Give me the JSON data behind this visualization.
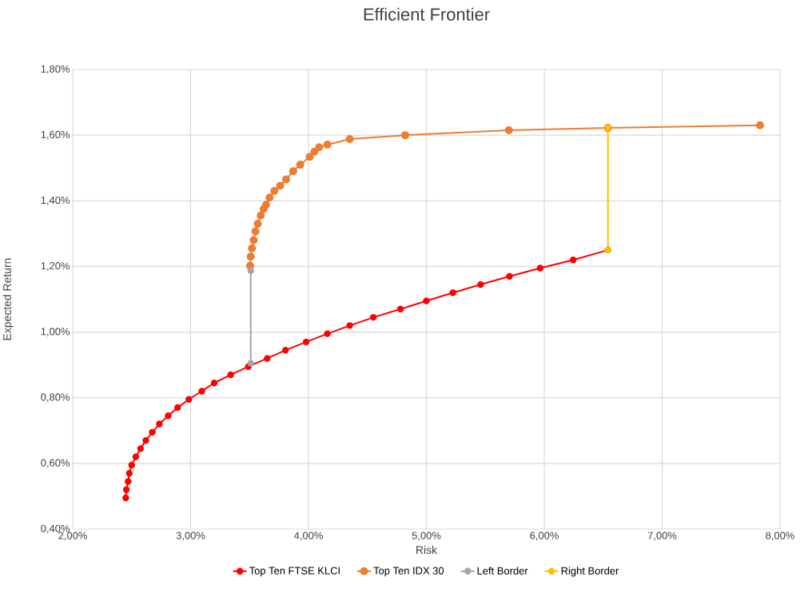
{
  "chart_data": {
    "type": "line",
    "title": "Efficient Frontier",
    "xlabel": "Risk",
    "ylabel": "Expected Return",
    "xlim": [
      2,
      8
    ],
    "ylim": [
      0.4,
      1.8
    ],
    "xticks": [
      {
        "value": 2,
        "label": "2,00%"
      },
      {
        "value": 3,
        "label": "3,00%"
      },
      {
        "value": 4,
        "label": "4,00%"
      },
      {
        "value": 5,
        "label": "5,00%"
      },
      {
        "value": 6,
        "label": "6,00%"
      },
      {
        "value": 7,
        "label": "7,00%"
      },
      {
        "value": 8,
        "label": "8,00%"
      }
    ],
    "yticks": [
      {
        "value": 0.4,
        "label": "0,40%"
      },
      {
        "value": 0.6,
        "label": "0,60%"
      },
      {
        "value": 0.8,
        "label": "0,80%"
      },
      {
        "value": 1.0,
        "label": "1,00%"
      },
      {
        "value": 1.2,
        "label": "1,20%"
      },
      {
        "value": 1.4,
        "label": "1,40%"
      },
      {
        "value": 1.6,
        "label": "1,60%"
      },
      {
        "value": 1.8,
        "label": "1,80%"
      }
    ],
    "grid": true,
    "legend": "bottom",
    "marker": "circle",
    "line_style": "solid",
    "series": [
      {
        "name": "Top Ten FTSE KLCI",
        "color": "#ff0000",
        "x": [
          2.45,
          2.455,
          2.47,
          2.48,
          2.5,
          2.535,
          2.575,
          2.62,
          2.675,
          2.735,
          2.81,
          2.89,
          2.985,
          3.095,
          3.2,
          3.34,
          3.49,
          3.65,
          3.805,
          3.98,
          4.16,
          4.35,
          4.55,
          4.78,
          5.0,
          5.225,
          5.46,
          5.705,
          5.965,
          6.245,
          6.54
        ],
        "values": [
          0.495,
          0.52,
          0.545,
          0.57,
          0.595,
          0.62,
          0.645,
          0.67,
          0.695,
          0.72,
          0.745,
          0.77,
          0.795,
          0.82,
          0.845,
          0.87,
          0.895,
          0.92,
          0.945,
          0.97,
          0.995,
          1.02,
          1.045,
          1.07,
          1.095,
          1.12,
          1.145,
          1.17,
          1.195,
          1.22,
          1.25
        ]
      },
      {
        "name": "Top Ten IDX 30",
        "color": "#ed7d31",
        "x": [
          3.505,
          3.51,
          3.52,
          3.535,
          3.55,
          3.57,
          3.595,
          3.62,
          3.64,
          3.67,
          3.71,
          3.76,
          3.81,
          3.87,
          3.93,
          4.01,
          4.05,
          4.09,
          4.16,
          4.35,
          4.82,
          5.7,
          6.54,
          7.83
        ],
        "values": [
          1.202,
          1.23,
          1.255,
          1.28,
          1.307,
          1.33,
          1.355,
          1.375,
          1.388,
          1.41,
          1.43,
          1.446,
          1.465,
          1.49,
          1.51,
          1.534,
          1.55,
          1.563,
          1.571,
          1.588,
          1.6,
          1.615,
          1.622,
          1.63
        ]
      },
      {
        "name": "Left Border",
        "color": "#a5a5a5",
        "x": [
          3.51,
          3.51
        ],
        "values": [
          0.905,
          1.187
        ]
      },
      {
        "name": "Right Border",
        "color": "#ffc000",
        "x": [
          6.54,
          6.54
        ],
        "values": [
          1.25,
          1.623
        ]
      }
    ]
  }
}
